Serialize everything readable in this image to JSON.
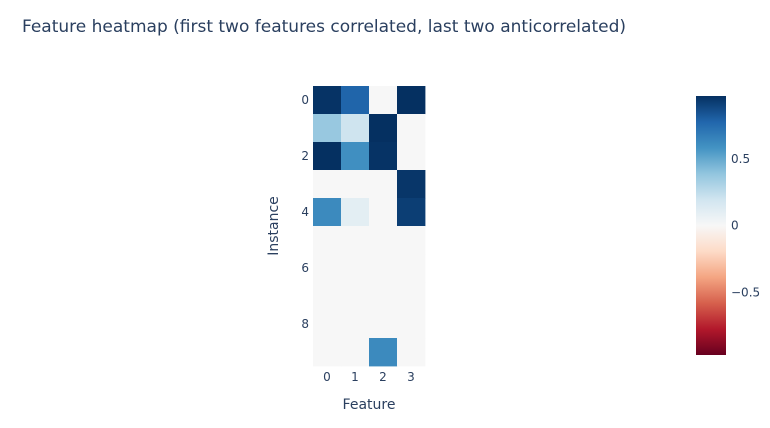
{
  "chart_data": {
    "type": "heatmap",
    "title": "Feature heatmap (first two features correlated, last two anticorrelated)",
    "xlabel": "Feature",
    "ylabel": "Instance",
    "x": [
      0,
      1,
      2,
      3
    ],
    "y": [
      0,
      1,
      2,
      3,
      4,
      5,
      6,
      7,
      8,
      9
    ],
    "x_tick_labels": [
      "0",
      "1",
      "2",
      "3"
    ],
    "y_tick_labels": [
      "0",
      "2",
      "4",
      "6",
      "8"
    ],
    "y_tick_values": [
      0,
      2,
      4,
      6,
      8
    ],
    "z": [
      [
        0.96,
        0.78,
        0.0,
        0.97
      ],
      [
        0.37,
        0.2,
        0.97,
        0.0
      ],
      [
        0.97,
        0.6,
        0.96,
        0.0
      ],
      [
        0.0,
        0.0,
        0.0,
        0.95
      ],
      [
        0.62,
        0.1,
        0.0,
        0.92
      ],
      [
        0.0,
        0.0,
        0.0,
        0.0
      ],
      [
        0.0,
        0.0,
        0.0,
        0.0
      ],
      [
        0.0,
        0.0,
        0.0,
        0.0
      ],
      [
        0.0,
        0.0,
        0.0,
        0.0
      ],
      [
        0.0,
        0.0,
        0.62,
        0.0
      ]
    ],
    "zrange": [
      -0.97,
      0.97
    ],
    "colorbar_ticks": [
      0.5,
      0,
      -0.5
    ],
    "colorbar_tick_labels": [
      "0.5",
      "0",
      "−0.5"
    ],
    "colorscale": "RdBu",
    "colors": {
      "high": "#053061",
      "mid": "#f7f7f7",
      "low": "#67001f"
    },
    "grid": false,
    "legend": "colorbar-right",
    "y_axis_reversed": true
  }
}
